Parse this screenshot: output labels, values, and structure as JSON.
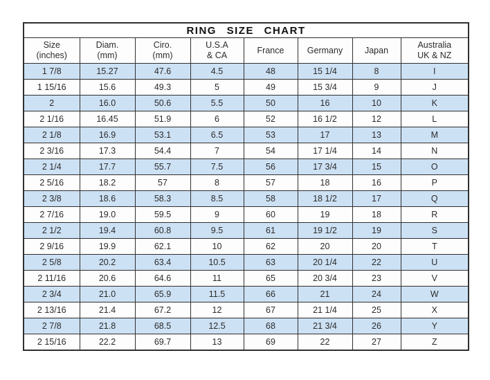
{
  "colors": {
    "row_alt": "#cde1f4",
    "row_plain": "#fdfdfd",
    "border": "#2f2f2f",
    "text": "#2b2b2b",
    "page_background": "#ffffff"
  },
  "table": {
    "header_display": [
      "Size\n(inches)",
      "Diam.\n(mm)",
      "Ciro.\n(mm)",
      "U.S.A\n& CA",
      "France",
      "Germany",
      "Japan",
      "Australia\nUK & NZ"
    ]
  },
  "chart_data": {
    "type": "table",
    "title": "RING  SIZE  CHART",
    "columns": [
      "Size (inches)",
      "Diam. (mm)",
      "Ciro. (mm)",
      "U.S.A & CA",
      "France",
      "Germany",
      "Japan",
      "Australia UK & NZ"
    ],
    "rows": [
      [
        "1 7/8",
        "15.27",
        "47.6",
        "4.5",
        "48",
        "15 1/4",
        "8",
        "I"
      ],
      [
        "1 15/16",
        "15.6",
        "49.3",
        "5",
        "49",
        "15 3/4",
        "9",
        "J"
      ],
      [
        "2",
        "16.0",
        "50.6",
        "5.5",
        "50",
        "16",
        "10",
        "K"
      ],
      [
        "2 1/16",
        "16.45",
        "51.9",
        "6",
        "52",
        "16 1/2",
        "12",
        "L"
      ],
      [
        "2 1/8",
        "16.9",
        "53.1",
        "6.5",
        "53",
        "17",
        "13",
        "M"
      ],
      [
        "2 3/16",
        "17.3",
        "54.4",
        "7",
        "54",
        "17 1/4",
        "14",
        "N"
      ],
      [
        "2 1/4",
        "17.7",
        "55.7",
        "7.5",
        "56",
        "17 3/4",
        "15",
        "O"
      ],
      [
        "2 5/16",
        "18.2",
        "57",
        "8",
        "57",
        "18",
        "16",
        "P"
      ],
      [
        "2 3/8",
        "18.6",
        "58.3",
        "8.5",
        "58",
        "18 1/2",
        "17",
        "Q"
      ],
      [
        "2 7/16",
        "19.0",
        "59.5",
        "9",
        "60",
        "19",
        "18",
        "R"
      ],
      [
        "2 1/2",
        "19.4",
        "60.8",
        "9.5",
        "61",
        "19 1/2",
        "19",
        "S"
      ],
      [
        "2 9/16",
        "19.9",
        "62.1",
        "10",
        "62",
        "20",
        "20",
        "T"
      ],
      [
        "2 5/8",
        "20.2",
        "63.4",
        "10.5",
        "63",
        "20 1/4",
        "22",
        "U"
      ],
      [
        "2 11/16",
        "20.6",
        "64.6",
        "11",
        "65",
        "20 3/4",
        "23",
        "V"
      ],
      [
        "2 3/4",
        "21.0",
        "65.9",
        "11.5",
        "66",
        "21",
        "24",
        "W"
      ],
      [
        "2 13/16",
        "21.4",
        "67.2",
        "12",
        "67",
        "21 1/4",
        "25",
        "X"
      ],
      [
        "2 7/8",
        "21.8",
        "68.5",
        "12.5",
        "68",
        "21 3/4",
        "26",
        "Y"
      ],
      [
        "2 15/16",
        "22.2",
        "69.7",
        "13",
        "69",
        "22",
        "27",
        "Z"
      ]
    ],
    "layout": {
      "alternating_row_shading": "odd rows shaded light blue",
      "grid": true
    }
  }
}
